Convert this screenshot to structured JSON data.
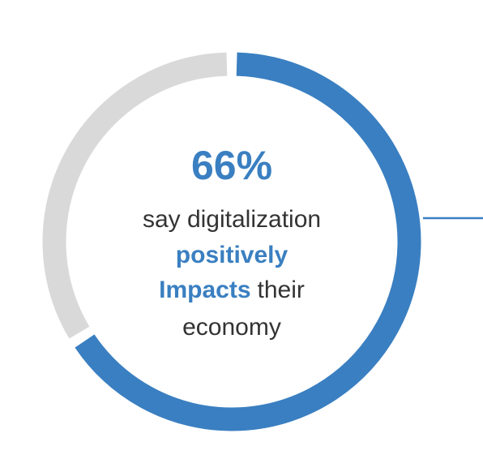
{
  "chart_data": {
    "type": "donut",
    "values": [
      66,
      34
    ],
    "value_labels": [
      "66%",
      null
    ],
    "colors": [
      "#3a7fc1",
      "#d9d9d9"
    ],
    "caption": [
      [
        {
          "text": "say digitalization",
          "highlight": false
        }
      ],
      [
        {
          "text": "positively",
          "highlight": true
        }
      ],
      [
        {
          "text": "Impacts",
          "highlight": true
        },
        {
          "text": "their",
          "highlight": false
        }
      ],
      [
        {
          "text": "economy",
          "highlight": false
        }
      ]
    ]
  }
}
